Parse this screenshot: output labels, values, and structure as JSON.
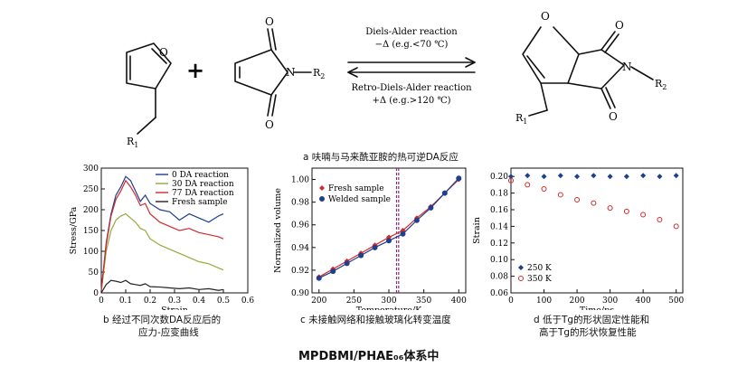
{
  "scheme": {
    "furan": {
      "substituent": "R",
      "sub": "1"
    },
    "plus": "+",
    "maleimide": {
      "O": "O",
      "N": "N",
      "substituent": "R",
      "sub": "2"
    },
    "forward_label": "Diels-Alder reaction",
    "forward_condition": "−Δ (e.g.<70 ℃)",
    "reverse_label": "Retro-Diels-Alder reaction",
    "reverse_condition": "+Δ (e.g.>120 ℃)",
    "adduct": {
      "bridge_O": "O",
      "O": "O",
      "N": "N",
      "r1": "R",
      "r1_sub": "1",
      "r2": "R",
      "r2_sub": "2"
    }
  },
  "caption_a": "a  呋喃与马来酰亚胺的热可逆DA反应",
  "caption_b_line1": "b  经过不同次数DA反应后的",
  "caption_b_line2": "应力-应变曲线",
  "caption_c": "c  未接触网络和接触玻璃化转变温度",
  "caption_d_line1": "d  低于Tg的形状固定性能和",
  "caption_d_line2": "高于Tg的形状恢复性能",
  "bottom_title": "MPDBMI/PHAE₀₆体系中",
  "chart_data": [
    {
      "type": "line",
      "xlabel": "Strain",
      "ylabel": "Stress/GPa",
      "xlim": [
        0,
        0.6
      ],
      "ylim": [
        0,
        300
      ],
      "xticks": [
        0,
        0.1,
        0.2,
        0.3,
        0.4,
        0.5,
        0.6
      ],
      "yticks": [
        0,
        50,
        100,
        150,
        200,
        250,
        300
      ],
      "legend_position": "top-right",
      "series": [
        {
          "name": "0 DA reaction",
          "color": "#1f3f8f",
          "x": [
            0,
            0.02,
            0.04,
            0.06,
            0.08,
            0.1,
            0.12,
            0.14,
            0.16,
            0.18,
            0.2,
            0.24,
            0.28,
            0.32,
            0.36,
            0.4,
            0.44,
            0.48,
            0.5
          ],
          "y": [
            5,
            120,
            190,
            235,
            255,
            280,
            270,
            245,
            220,
            235,
            215,
            200,
            195,
            175,
            190,
            180,
            170,
            185,
            190
          ]
        },
        {
          "name": "30 DA reaction",
          "color": "#9aa83a",
          "x": [
            0,
            0.02,
            0.04,
            0.06,
            0.08,
            0.1,
            0.12,
            0.14,
            0.16,
            0.18,
            0.2,
            0.24,
            0.28,
            0.32,
            0.36,
            0.4,
            0.44,
            0.48,
            0.5
          ],
          "y": [
            5,
            100,
            150,
            175,
            185,
            190,
            180,
            170,
            155,
            150,
            130,
            115,
            105,
            95,
            85,
            75,
            70,
            60,
            55
          ]
        },
        {
          "name": "77 DA reaction",
          "color": "#d12a2a",
          "x": [
            0,
            0.02,
            0.04,
            0.06,
            0.08,
            0.1,
            0.12,
            0.14,
            0.16,
            0.18,
            0.2,
            0.24,
            0.28,
            0.32,
            0.36,
            0.4,
            0.44,
            0.48,
            0.5
          ],
          "y": [
            5,
            115,
            185,
            225,
            245,
            270,
            255,
            235,
            210,
            215,
            190,
            170,
            160,
            150,
            155,
            145,
            140,
            135,
            130
          ]
        },
        {
          "name": "Fresh sample",
          "color": "#222222",
          "x": [
            0,
            0.02,
            0.04,
            0.06,
            0.08,
            0.1,
            0.12,
            0.14,
            0.16,
            0.18,
            0.2,
            0.24,
            0.28,
            0.32,
            0.36,
            0.4,
            0.44,
            0.48,
            0.5
          ],
          "y": [
            0,
            20,
            30,
            28,
            25,
            30,
            22,
            20,
            18,
            22,
            15,
            14,
            12,
            10,
            12,
            8,
            10,
            6,
            8
          ]
        }
      ]
    },
    {
      "type": "line",
      "xlabel": "Temperature/K",
      "ylabel": "Normalized volume",
      "xlim": [
        190,
        410
      ],
      "ylim": [
        0.9,
        1.01
      ],
      "xticks": [
        200,
        250,
        300,
        350,
        400
      ],
      "yticks": [
        0.9,
        0.92,
        0.94,
        0.96,
        0.98,
        1.0
      ],
      "legend_position": "top-left",
      "vlines": [
        311,
        314
      ],
      "series": [
        {
          "name": "Fresh sample",
          "color": "#d12a2a",
          "marker": "diamond",
          "x": [
            200,
            220,
            240,
            260,
            280,
            300,
            320,
            340,
            360,
            380,
            400
          ],
          "y": [
            0.914,
            0.921,
            0.928,
            0.935,
            0.942,
            0.949,
            0.955,
            0.966,
            0.976,
            0.988,
            1.0
          ]
        },
        {
          "name": "Welded sample",
          "color": "#1f3f8f",
          "marker": "circle",
          "x": [
            200,
            220,
            240,
            260,
            280,
            300,
            320,
            340,
            360,
            380,
            400
          ],
          "y": [
            0.913,
            0.919,
            0.926,
            0.933,
            0.94,
            0.946,
            0.952,
            0.964,
            0.975,
            0.988,
            1.001
          ]
        }
      ]
    },
    {
      "type": "scatter",
      "xlabel": "Time/ps",
      "ylabel": "Strain",
      "xlim": [
        0,
        520
      ],
      "ylim": [
        0.06,
        0.21
      ],
      "xticks": [
        0,
        100,
        200,
        300,
        400,
        500
      ],
      "yticks": [
        0.06,
        0.08,
        0.1,
        0.12,
        0.14,
        0.16,
        0.18,
        0.2
      ],
      "legend_position": "bottom-left",
      "series": [
        {
          "name": "250 K",
          "color": "#1f3f8f",
          "marker": "diamond",
          "x": [
            0,
            50,
            100,
            150,
            200,
            250,
            300,
            350,
            400,
            450,
            500
          ],
          "y": [
            0.2,
            0.201,
            0.2,
            0.201,
            0.2,
            0.201,
            0.2,
            0.2,
            0.201,
            0.2,
            0.201
          ]
        },
        {
          "name": "350 K",
          "color": "#d12a2a",
          "marker": "circle",
          "x": [
            0,
            50,
            100,
            150,
            200,
            250,
            300,
            350,
            400,
            450,
            500
          ],
          "y": [
            0.195,
            0.19,
            0.185,
            0.178,
            0.172,
            0.168,
            0.162,
            0.158,
            0.154,
            0.148,
            0.14
          ]
        }
      ]
    }
  ]
}
